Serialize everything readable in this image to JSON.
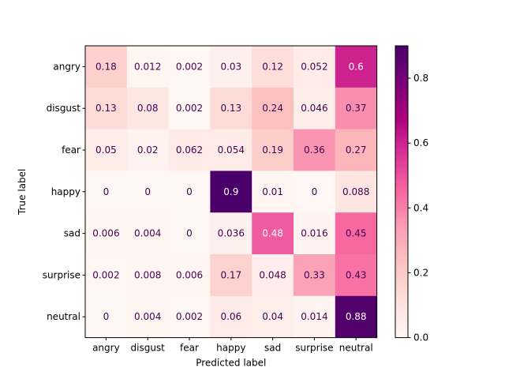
{
  "chart_data": {
    "type": "heatmap",
    "title": "",
    "xlabel": "Predicted label",
    "ylabel": "True label",
    "x_categories": [
      "angry",
      "disgust",
      "fear",
      "happy",
      "sad",
      "surprise",
      "neutral"
    ],
    "y_categories": [
      "angry",
      "disgust",
      "fear",
      "happy",
      "sad",
      "surprise",
      "neutral"
    ],
    "values": [
      [
        0.18,
        0.012,
        0.002,
        0.03,
        0.12,
        0.052,
        0.6
      ],
      [
        0.13,
        0.08,
        0.002,
        0.13,
        0.24,
        0.046,
        0.37
      ],
      [
        0.05,
        0.02,
        0.062,
        0.054,
        0.19,
        0.36,
        0.27
      ],
      [
        0,
        0,
        0,
        0.9,
        0.01,
        0,
        0.088
      ],
      [
        0.006,
        0.004,
        0,
        0.036,
        0.48,
        0.016,
        0.45
      ],
      [
        0.002,
        0.008,
        0.006,
        0.17,
        0.048,
        0.33,
        0.43
      ],
      [
        0,
        0.004,
        0.002,
        0.06,
        0.04,
        0.014,
        0.88
      ]
    ],
    "value_labels": [
      [
        "0.18",
        "0.012",
        "0.002",
        "0.03",
        "0.12",
        "0.052",
        "0.6"
      ],
      [
        "0.13",
        "0.08",
        "0.002",
        "0.13",
        "0.24",
        "0.046",
        "0.37"
      ],
      [
        "0.05",
        "0.02",
        "0.062",
        "0.054",
        "0.19",
        "0.36",
        "0.27"
      ],
      [
        "0",
        "0",
        "0",
        "0.9",
        "0.01",
        "0",
        "0.088"
      ],
      [
        "0.006",
        "0.004",
        "0",
        "0.036",
        "0.48",
        "0.016",
        "0.45"
      ],
      [
        "0.002",
        "0.008",
        "0.006",
        "0.17",
        "0.048",
        "0.33",
        "0.43"
      ],
      [
        "0",
        "0.004",
        "0.002",
        "0.06",
        "0.04",
        "0.014",
        "0.88"
      ]
    ],
    "colormap": "RdPu",
    "vmin": 0,
    "vmax": 0.9,
    "colorbar": {
      "ticks": [
        0.0,
        0.2,
        0.4,
        0.6,
        0.8
      ],
      "tick_labels": [
        "0.0",
        "0.2",
        "0.4",
        "0.6",
        "0.8"
      ]
    },
    "text_color_light": "#ffffff",
    "text_color_dark": "#440154"
  }
}
